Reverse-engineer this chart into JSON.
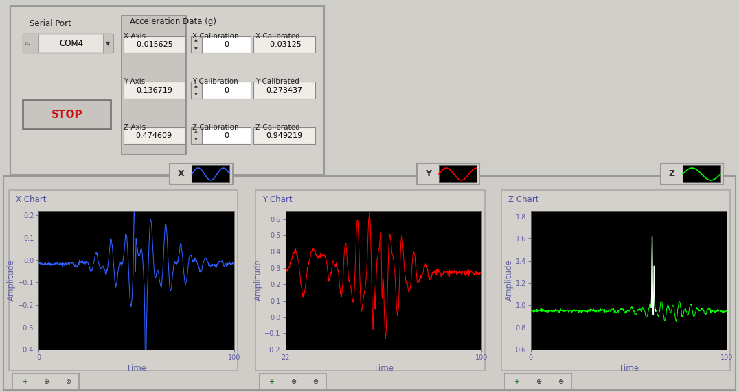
{
  "bg_color": "#d0cec8",
  "top_panel_bg": "#d0cec8",
  "bottom_panel_bg": "#d0cec8",
  "plot_bg": "#000000",
  "tick_color": "#6060a0",
  "axis_label_color": "#6060a0",
  "label_color": "#333333",
  "value_text_color": "#000000",
  "top_panel": {
    "serial_port_label": "Serial Port",
    "serial_port_value": "COM4",
    "accel_title": "Acceleration Data (g)",
    "axis_labels": [
      "X Axis",
      "Y Axis",
      "Z Axis"
    ],
    "axis_values": [
      "-0.015625",
      "0.136719",
      "0.474609"
    ],
    "cal_labels": [
      "X Calibration",
      "Y Calibration",
      "Z Calibration"
    ],
    "cal_values": [
      "0",
      "0",
      "0"
    ],
    "calib_labels": [
      "X Calibrated",
      "Y Calibrated",
      "Z Calibrated"
    ],
    "calib_values": [
      "-0.03125",
      "0.273437",
      "0.949219"
    ],
    "stop_label": "STOP"
  },
  "charts": [
    {
      "title": "X Chart",
      "legend_label": "X",
      "color": "#3060ff",
      "ylabel": "Amplitude",
      "xlabel": "Time",
      "xlim": [
        0,
        100
      ],
      "ylim": [
        -0.4,
        0.22
      ],
      "yticks": [
        0.2,
        0.1,
        0.0,
        -0.1,
        -0.2,
        -0.3,
        -0.4
      ],
      "xticks": [
        0,
        100
      ]
    },
    {
      "title": "Y Chart",
      "legend_label": "Y",
      "color": "#ff0000",
      "ylabel": "Amplitude",
      "xlabel": "Time",
      "xlim": [
        22,
        100
      ],
      "ylim": [
        -0.2,
        0.65
      ],
      "yticks": [
        0.6,
        0.5,
        0.4,
        0.3,
        0.2,
        0.1,
        0.0,
        -0.1,
        -0.2
      ],
      "xticks": [
        22,
        100
      ]
    },
    {
      "title": "Z Chart",
      "legend_label": "Z",
      "color": "#00ff00",
      "ylabel": "Amplitude",
      "xlabel": "Time",
      "xlim": [
        0,
        100
      ],
      "ylim": [
        0.6,
        1.85
      ],
      "yticks": [
        1.8,
        1.6,
        1.4,
        1.2,
        1.0,
        0.8,
        0.6
      ],
      "xticks": [
        0,
        100
      ]
    }
  ]
}
